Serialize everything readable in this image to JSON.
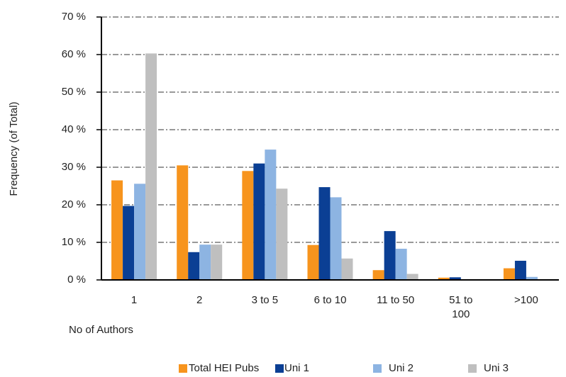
{
  "chart_data": {
    "type": "bar",
    "y_label": "Frequency (of Total)",
    "x_label": "No of Authors",
    "categories": [
      "1",
      "2",
      "3 to 5",
      "6 to 10",
      "11 to 50",
      "51 to 100",
      ">100"
    ],
    "series": [
      {
        "name": "Total HEI Pubs",
        "color": "#f7941d",
        "values": [
          26.5,
          30.5,
          29,
          9.3,
          2.6,
          0.6,
          3.1
        ]
      },
      {
        "name": "Uni 1",
        "color": "#0b3f94",
        "values": [
          19.7,
          7.4,
          31,
          24.7,
          13,
          0.7,
          5.1
        ]
      },
      {
        "name": "Uni 2",
        "color": "#8db4e2",
        "values": [
          25.6,
          9.4,
          34.7,
          22,
          8.3,
          0,
          0.8
        ]
      },
      {
        "name": "Uni 3",
        "color": "#bfbfbf",
        "values": [
          60.3,
          9.4,
          24.3,
          5.7,
          1.6,
          0,
          0
        ]
      }
    ],
    "ylim": [
      0,
      70
    ],
    "yticks": [
      {
        "value": 0,
        "label": "0 %"
      },
      {
        "value": 10,
        "label": "10 %"
      },
      {
        "value": 20,
        "label": "20 %"
      },
      {
        "value": 30,
        "label": "30 %"
      },
      {
        "value": 40,
        "label": "40 %"
      },
      {
        "value": 50,
        "label": "50 %"
      },
      {
        "value": 60,
        "label": "60 %"
      },
      {
        "value": 70,
        "label": "70 %"
      }
    ],
    "grid": true
  }
}
